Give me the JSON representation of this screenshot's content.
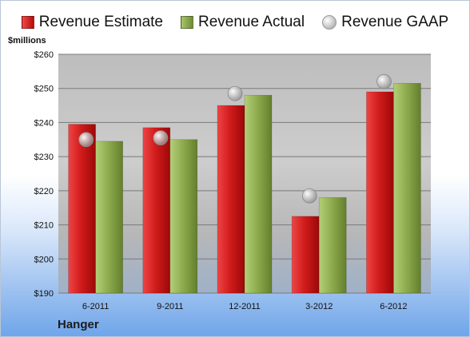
{
  "chart_data": {
    "type": "bar",
    "ylabel": "$millions",
    "company": "Hanger",
    "categories": [
      "6-2011",
      "9-2011",
      "12-2011",
      "3-2012",
      "6-2012"
    ],
    "series": [
      {
        "name": "Revenue Estimate",
        "kind": "bar",
        "color": "#d41f1f",
        "values": [
          239.5,
          238.5,
          245,
          212.5,
          249
        ]
      },
      {
        "name": "Revenue Actual",
        "kind": "bar",
        "color": "#8fad4f",
        "values": [
          234.5,
          235,
          248,
          218,
          251.5
        ]
      },
      {
        "name": "Revenue GAAP",
        "kind": "marker",
        "color": "#b5b5b5",
        "values": [
          235,
          235.5,
          248.5,
          218.5,
          252
        ]
      }
    ],
    "ylim": [
      190,
      260
    ],
    "yticks": [
      190,
      200,
      210,
      220,
      230,
      240,
      250,
      260
    ],
    "ytick_labels": [
      "$190",
      "$200",
      "$210",
      "$220",
      "$230",
      "$240",
      "$250",
      "$260"
    ],
    "grid": true,
    "legend_position": "top"
  }
}
